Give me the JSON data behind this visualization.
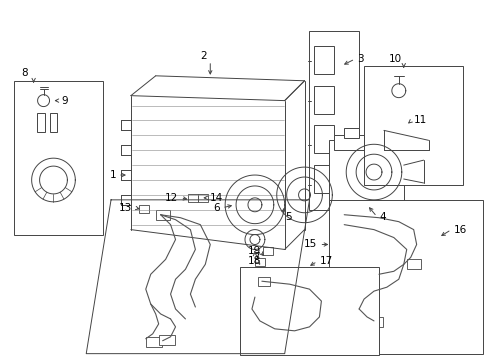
{
  "bg_color": "#ffffff",
  "line_color": "#444444",
  "fig_width": 4.89,
  "fig_height": 3.6,
  "dpi": 100,
  "lw": 0.7,
  "fs_label": 7.5
}
